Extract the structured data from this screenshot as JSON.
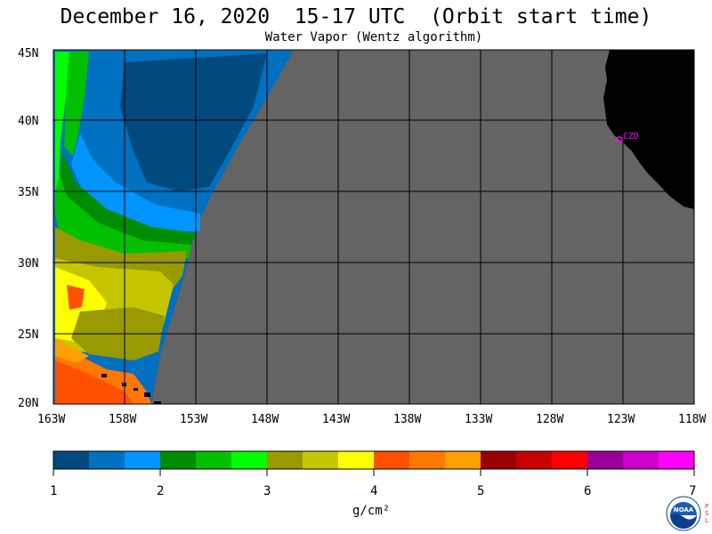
{
  "title": "December 16, 2020  15-17 UTC  (Orbit start time)",
  "subtitle": "Water Vapor (Wentz algorithm)",
  "lat_labels": [
    "45N",
    "40N",
    "35N",
    "30N",
    "25N",
    "20N"
  ],
  "lon_labels": [
    "163W",
    "158W",
    "153W",
    "148W",
    "143W",
    "138W",
    "133W",
    "128W",
    "123W",
    "118W"
  ],
  "station_label": "CZD",
  "colorbar": {
    "ticks": [
      "1",
      "2",
      "3",
      "4",
      "5",
      "6",
      "7"
    ],
    "unit": "g/cm²",
    "colors": [
      "#004a7f",
      "#0070c0",
      "#0095ff",
      "#008c00",
      "#00c000",
      "#00ff00",
      "#999900",
      "#c6c600",
      "#ffff00",
      "#ff5000",
      "#ff7800",
      "#ffa000",
      "#990000",
      "#c80000",
      "#ff0000",
      "#990099",
      "#cc00cc",
      "#ff00ff"
    ]
  },
  "logo": {
    "text": "NOAA",
    "side": "PSL"
  },
  "colors": {
    "land": "#000000",
    "no_data": "#646464",
    "grid": "#000000",
    "station": "#ff00ff"
  }
}
